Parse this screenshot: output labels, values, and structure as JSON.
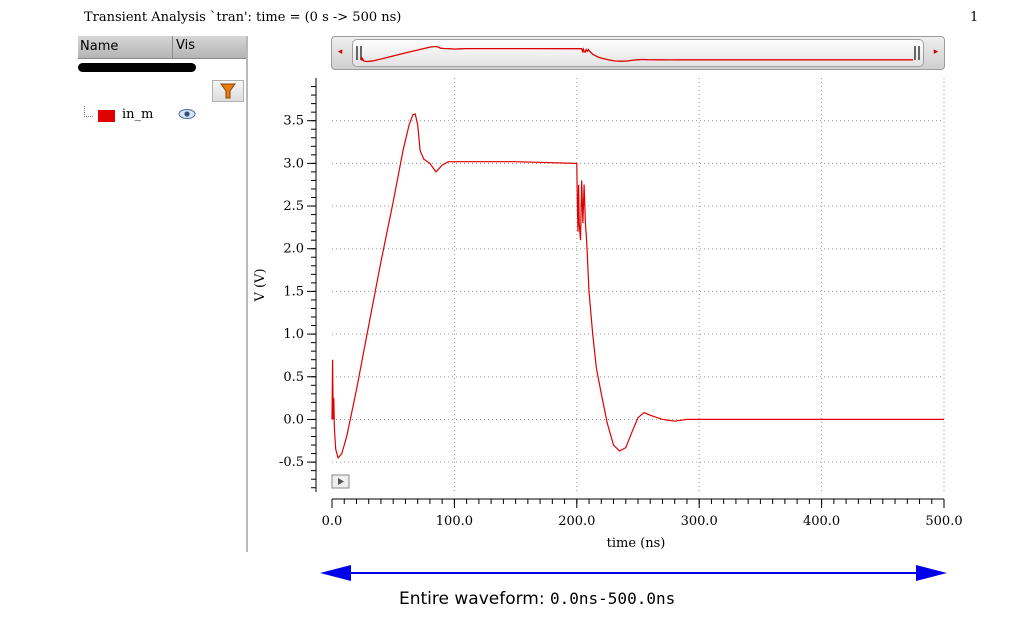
{
  "header": {
    "title": "Transient Analysis `tran': time = (0 s -> 500 ns)",
    "page_number": "1"
  },
  "signal_panel": {
    "columns": {
      "name": "Name",
      "vis": "Vis"
    },
    "signals": [
      {
        "label": "in_m",
        "color": "#e00000"
      }
    ],
    "filter_icon": "funnel-icon",
    "visibility_icon": "eye-icon"
  },
  "overview_scroller": {
    "left_arrow": "◂",
    "right_arrow": "▸"
  },
  "chart_data": {
    "type": "line",
    "xlabel": "time (ns)",
    "ylabel": "V (V)",
    "xlim": [
      0,
      500
    ],
    "ylim": [
      -0.85,
      4.0
    ],
    "x_ticks": [
      0,
      100,
      200,
      300,
      400,
      500
    ],
    "x_tick_labels": [
      "0.0",
      "100.0",
      "200.0",
      "300.0",
      "400.0",
      "500.0"
    ],
    "y_ticks": [
      -0.5,
      0.0,
      0.5,
      1.0,
      1.5,
      2.0,
      2.5,
      3.0,
      3.5
    ],
    "y_tick_labels": [
      "-0.5",
      "0.0",
      "0.5",
      "1.0",
      "1.5",
      "2.0",
      "2.5",
      "3.0",
      "3.5"
    ],
    "grid": true,
    "series": [
      {
        "name": "in_m",
        "color": "#e00000",
        "x": [
          0,
          0.5,
          1,
          1.5,
          2,
          3,
          5,
          8,
          12,
          20,
          30,
          40,
          50,
          58,
          63,
          66,
          68,
          70,
          72,
          75,
          80,
          85,
          90,
          95,
          100,
          150,
          199,
          200,
          200.5,
          201,
          201.5,
          202,
          203,
          204,
          205,
          206,
          207,
          208,
          210,
          213,
          216,
          220,
          225,
          230,
          235,
          240,
          245,
          250,
          255,
          260,
          270,
          280,
          290,
          300,
          400,
          500
        ],
        "y": [
          0.0,
          0.7,
          0.0,
          0.25,
          -0.1,
          -0.35,
          -0.45,
          -0.4,
          -0.2,
          0.35,
          1.1,
          1.85,
          2.55,
          3.15,
          3.45,
          3.57,
          3.58,
          3.45,
          3.15,
          3.05,
          3.0,
          2.9,
          2.98,
          3.02,
          3.02,
          3.02,
          3.0,
          3.0,
          2.5,
          2.2,
          2.75,
          2.3,
          2.1,
          2.8,
          2.3,
          2.75,
          2.3,
          2.1,
          1.5,
          1.0,
          0.6,
          0.3,
          -0.05,
          -0.3,
          -0.37,
          -0.33,
          -0.15,
          0.02,
          0.08,
          0.05,
          0.0,
          -0.02,
          0.0,
          0.0,
          0.0,
          0.0
        ]
      }
    ]
  },
  "annotation": {
    "label": "Entire waveform:",
    "range": "0.0ns-500.0ns",
    "arrow_color": "#0000ee"
  }
}
